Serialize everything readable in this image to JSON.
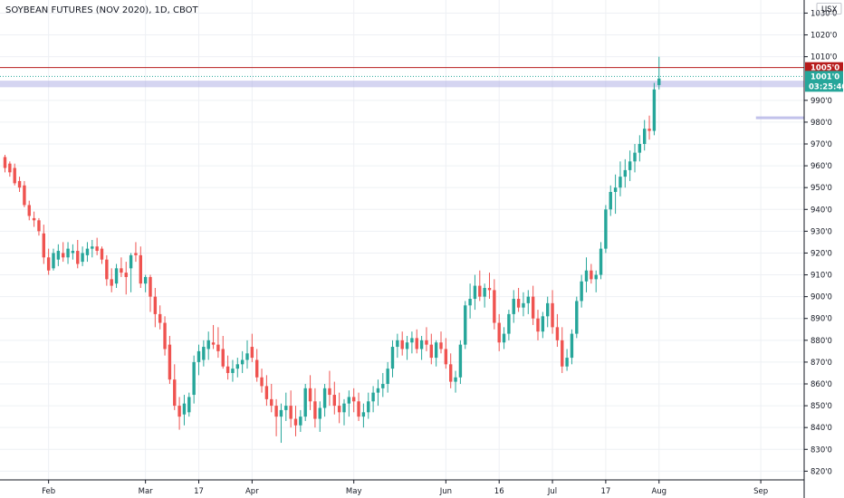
{
  "colors": {
    "up": "#26a69a",
    "down": "#ef5350",
    "grid": "#eef0f4",
    "axis": "#131722",
    "resistance_line": "#b71c1c",
    "zone": "#b3b3e6"
  },
  "chart_data": {
    "type": "candlestick",
    "title": "SOYBEAN FUTURES (NOV 2020), 1D, CBOT",
    "currency": "USX",
    "y_range": [
      816,
      1036
    ],
    "y_ticks": [
      {
        "v": 1030,
        "label": "1030'0"
      },
      {
        "v": 1020,
        "label": "1020'0"
      },
      {
        "v": 1010,
        "label": "1010'0"
      },
      {
        "v": 990,
        "label": "990'0"
      },
      {
        "v": 980,
        "label": "980'0"
      },
      {
        "v": 970,
        "label": "970'0"
      },
      {
        "v": 960,
        "label": "960'0"
      },
      {
        "v": 950,
        "label": "950'0"
      },
      {
        "v": 940,
        "label": "940'0"
      },
      {
        "v": 930,
        "label": "930'0"
      },
      {
        "v": 920,
        "label": "920'0"
      },
      {
        "v": 910,
        "label": "910'0"
      },
      {
        "v": 900,
        "label": "900'0"
      },
      {
        "v": 890,
        "label": "890'0"
      },
      {
        "v": 880,
        "label": "880'0"
      },
      {
        "v": 870,
        "label": "870'0"
      },
      {
        "v": 860,
        "label": "860'0"
      },
      {
        "v": 850,
        "label": "850'0"
      },
      {
        "v": 840,
        "label": "840'0"
      },
      {
        "v": 830,
        "label": "830'0"
      },
      {
        "v": 820,
        "label": "820'0"
      }
    ],
    "x_ticks": [
      {
        "i": 9,
        "label": "Feb"
      },
      {
        "i": 29,
        "label": "Mar"
      },
      {
        "i": 40,
        "label": "17"
      },
      {
        "i": 51,
        "label": "Apr"
      },
      {
        "i": 72,
        "label": "May"
      },
      {
        "i": 91,
        "label": "Jun"
      },
      {
        "i": 102,
        "label": "16"
      },
      {
        "i": 113,
        "label": "Jul"
      },
      {
        "i": 124,
        "label": "17"
      },
      {
        "i": 135,
        "label": "Aug"
      },
      {
        "i": 156,
        "label": "Sep"
      }
    ],
    "resistance_level": 1005,
    "resistance_label": "1005'0",
    "last_price": 1001,
    "last_price_label": "1001'0",
    "countdown": "03:25:40",
    "zone": [
      996,
      999
    ],
    "short_zone": {
      "start": 155,
      "end": 165,
      "level": 982
    },
    "candles": [
      [
        964,
        965,
        957,
        959
      ],
      [
        961,
        962,
        955,
        957
      ],
      [
        959,
        961,
        951,
        952
      ],
      [
        953,
        955,
        948,
        950
      ],
      [
        951,
        953,
        941,
        942
      ],
      [
        942,
        944,
        935,
        937
      ],
      [
        936,
        939,
        932,
        935
      ],
      [
        935,
        936,
        928,
        930
      ],
      [
        929,
        933,
        915,
        918
      ],
      [
        918,
        922,
        910,
        912
      ],
      [
        913,
        922,
        912,
        920
      ],
      [
        917,
        924,
        914,
        921
      ],
      [
        920,
        925,
        916,
        918
      ],
      [
        918,
        925,
        915,
        922
      ],
      [
        920,
        924,
        917,
        921
      ],
      [
        921,
        926,
        913,
        915
      ],
      [
        916,
        923,
        914,
        920
      ],
      [
        919,
        925,
        916,
        922
      ],
      [
        922,
        926,
        918,
        923
      ],
      [
        923,
        927,
        919,
        921
      ],
      [
        922,
        923,
        915,
        917
      ],
      [
        917,
        919,
        905,
        908
      ],
      [
        908,
        913,
        902,
        905
      ],
      [
        906,
        915,
        904,
        913
      ],
      [
        913,
        918,
        909,
        911
      ],
      [
        911,
        916,
        901,
        909
      ],
      [
        913,
        920,
        902,
        919
      ],
      [
        920,
        925,
        916,
        919
      ],
      [
        919,
        923,
        904,
        906
      ],
      [
        906,
        910,
        902,
        909
      ],
      [
        909,
        910,
        893,
        900
      ],
      [
        900,
        904,
        886,
        892
      ],
      [
        892,
        896,
        885,
        888
      ],
      [
        888,
        891,
        873,
        876
      ],
      [
        878,
        882,
        860,
        862
      ],
      [
        862,
        869,
        848,
        850
      ],
      [
        850,
        854,
        839,
        845
      ],
      [
        846,
        855,
        841,
        851
      ],
      [
        847,
        856,
        845,
        854
      ],
      [
        855,
        873,
        851,
        870
      ],
      [
        870,
        878,
        864,
        875
      ],
      [
        871,
        880,
        868,
        877
      ],
      [
        876,
        884,
        871,
        880
      ],
      [
        879,
        887,
        876,
        878
      ],
      [
        878,
        886,
        872,
        875
      ],
      [
        876,
        882,
        867,
        868
      ],
      [
        868,
        873,
        862,
        865
      ],
      [
        865,
        871,
        861,
        867
      ],
      [
        867,
        872,
        863,
        869
      ],
      [
        869,
        875,
        865,
        871
      ],
      [
        871,
        880,
        867,
        874
      ],
      [
        877,
        883,
        870,
        872
      ],
      [
        871,
        876,
        861,
        863
      ],
      [
        863,
        867,
        856,
        859
      ],
      [
        859,
        864,
        850,
        853
      ],
      [
        853,
        860,
        847,
        850
      ],
      [
        850,
        853,
        836,
        845
      ],
      [
        845,
        851,
        833,
        848
      ],
      [
        848,
        856,
        843,
        850
      ],
      [
        850,
        857,
        840,
        844
      ],
      [
        844,
        850,
        836,
        841
      ],
      [
        841,
        848,
        838,
        845
      ],
      [
        845,
        860,
        843,
        858
      ],
      [
        858,
        864,
        848,
        852
      ],
      [
        852,
        858,
        840,
        844
      ],
      [
        844,
        852,
        838,
        849
      ],
      [
        849,
        860,
        845,
        858
      ],
      [
        858,
        866,
        850,
        855
      ],
      [
        855,
        861,
        846,
        850
      ],
      [
        850,
        856,
        842,
        847
      ],
      [
        847,
        853,
        841,
        851
      ],
      [
        851,
        857,
        845,
        854
      ],
      [
        854,
        858,
        847,
        852
      ],
      [
        852,
        856,
        843,
        845
      ],
      [
        845,
        851,
        840,
        847
      ],
      [
        847,
        856,
        844,
        852
      ],
      [
        852,
        859,
        847,
        856
      ],
      [
        856,
        862,
        850,
        858
      ],
      [
        858,
        865,
        854,
        860
      ],
      [
        860,
        870,
        856,
        867
      ],
      [
        867,
        880,
        863,
        877
      ],
      [
        877,
        883,
        872,
        880
      ],
      [
        880,
        884,
        873,
        876
      ],
      [
        876,
        882,
        871,
        879
      ],
      [
        879,
        884,
        874,
        881
      ],
      [
        881,
        885,
        874,
        876
      ],
      [
        876,
        882,
        871,
        880
      ],
      [
        880,
        886,
        875,
        878
      ],
      [
        878,
        883,
        869,
        872
      ],
      [
        872,
        880,
        868,
        879
      ],
      [
        879,
        884,
        874,
        876
      ],
      [
        876,
        881,
        867,
        869
      ],
      [
        869,
        874,
        858,
        861
      ],
      [
        861,
        866,
        856,
        863
      ],
      [
        863,
        880,
        860,
        878
      ],
      [
        878,
        898,
        876,
        896
      ],
      [
        896,
        906,
        890,
        899
      ],
      [
        899,
        910,
        894,
        905
      ],
      [
        905,
        912,
        898,
        900
      ],
      [
        900,
        906,
        895,
        904
      ],
      [
        904,
        911,
        899,
        903
      ],
      [
        903,
        908,
        885,
        888
      ],
      [
        888,
        892,
        875,
        879
      ],
      [
        879,
        886,
        876,
        883
      ],
      [
        883,
        894,
        880,
        892
      ],
      [
        892,
        903,
        888,
        899
      ],
      [
        899,
        904,
        893,
        895
      ],
      [
        895,
        902,
        891,
        897
      ],
      [
        897,
        903,
        892,
        900
      ],
      [
        900,
        905,
        887,
        890
      ],
      [
        890,
        894,
        880,
        884
      ],
      [
        884,
        893,
        881,
        891
      ],
      [
        891,
        900,
        886,
        897
      ],
      [
        897,
        903,
        883,
        886
      ],
      [
        886,
        892,
        877,
        880
      ],
      [
        880,
        886,
        865,
        868
      ],
      [
        868,
        876,
        866,
        872
      ],
      [
        872,
        885,
        869,
        883
      ],
      [
        883,
        900,
        881,
        898
      ],
      [
        898,
        910,
        895,
        907
      ],
      [
        907,
        918,
        902,
        912
      ],
      [
        912,
        915,
        906,
        908
      ],
      [
        908,
        912,
        902,
        910
      ],
      [
        910,
        925,
        908,
        922
      ],
      [
        922,
        942,
        920,
        940
      ],
      [
        940,
        951,
        937,
        948
      ],
      [
        948,
        956,
        938,
        950
      ],
      [
        950,
        962,
        946,
        955
      ],
      [
        955,
        963,
        950,
        958
      ],
      [
        958,
        967,
        953,
        962
      ],
      [
        962,
        970,
        957,
        966
      ],
      [
        966,
        974,
        962,
        970
      ],
      [
        970,
        981,
        967,
        977
      ],
      [
        977,
        983,
        972,
        976
      ],
      [
        976,
        998,
        974,
        995
      ],
      [
        997,
        1010,
        995,
        1000
      ]
    ]
  }
}
